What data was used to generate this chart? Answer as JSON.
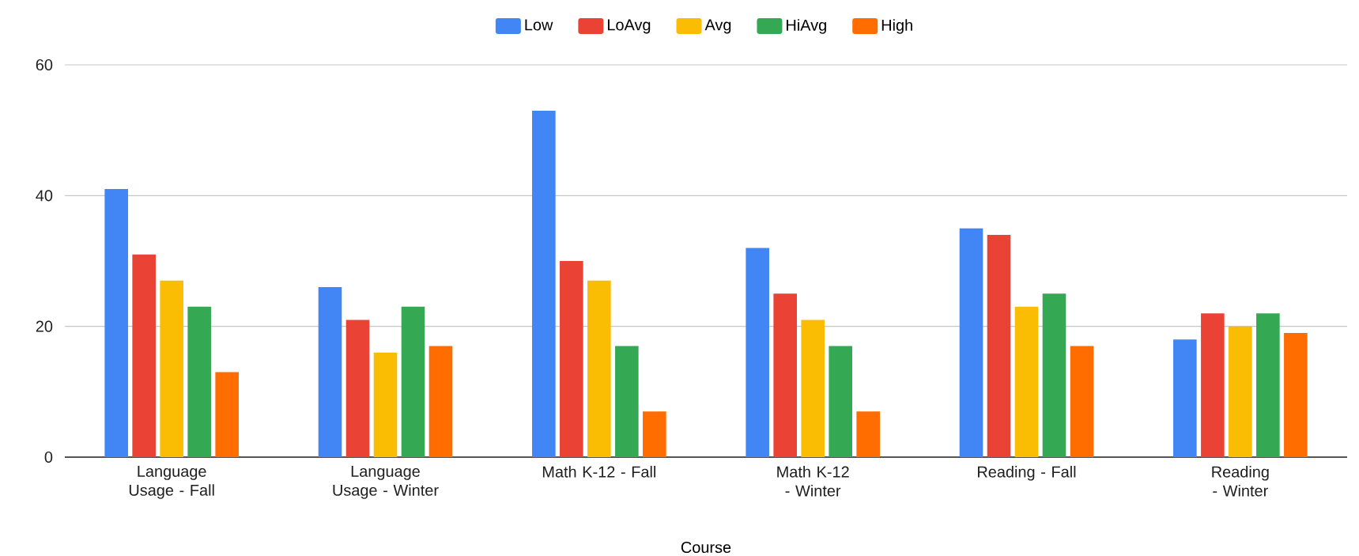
{
  "chart_data": {
    "type": "bar",
    "xlabel": "Course",
    "categories": [
      "Language Usage - Fall",
      "Language Usage - Winter",
      "Math K-12 - Fall",
      "Math K-12 - Winter",
      "Reading - Fall",
      "Reading - Winter"
    ],
    "series": [
      {
        "name": "Low",
        "color": "#4285f4",
        "values": [
          41,
          26,
          53,
          32,
          35,
          18
        ]
      },
      {
        "name": "LoAvg",
        "color": "#ea4335",
        "values": [
          31,
          21,
          30,
          25,
          34,
          22
        ]
      },
      {
        "name": "Avg",
        "color": "#fbbc04",
        "values": [
          27,
          16,
          27,
          21,
          23,
          20
        ]
      },
      {
        "name": "HiAvg",
        "color": "#34a853",
        "values": [
          23,
          23,
          17,
          17,
          25,
          22
        ]
      },
      {
        "name": "High",
        "color": "#ff6d01",
        "values": [
          13,
          17,
          7,
          7,
          17,
          19
        ]
      }
    ],
    "ylim": [
      0,
      60
    ],
    "yticks": [
      0,
      20,
      40,
      60
    ],
    "grid": "y",
    "legend": "top"
  }
}
